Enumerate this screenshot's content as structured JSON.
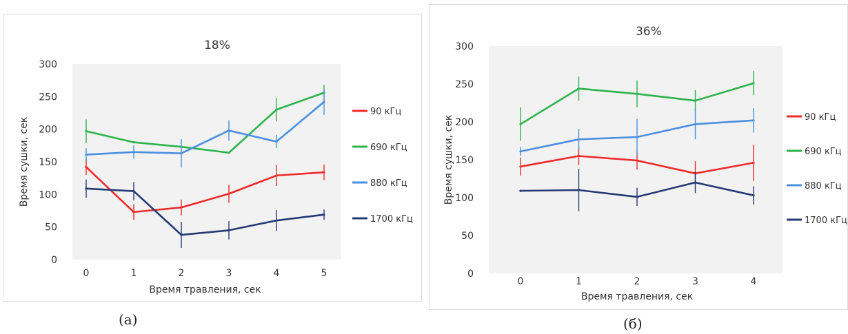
{
  "colors": {
    "90": "#ee2a2a",
    "690": "#2cb34a",
    "880": "#4a8fe0",
    "1700": "#243a73",
    "plot_bg": "#f2f2f2"
  },
  "captions": {
    "a": "(а)",
    "b": "(б)"
  },
  "chart_data": [
    {
      "type": "line",
      "title": "18%",
      "xlabel": "Время травления, сек",
      "ylabel": "Время сушки, сек",
      "x": [
        0,
        1,
        2,
        3,
        4,
        5
      ],
      "xlim": [
        0,
        5
      ],
      "ylim": [
        0,
        300
      ],
      "yticks": [
        0,
        50,
        100,
        150,
        200,
        250,
        300
      ],
      "grid": false,
      "legend": "right",
      "series": [
        {
          "name": "90 кГц",
          "color_key": "90",
          "values": [
            142,
            73,
            80,
            101,
            129,
            134
          ],
          "errors": [
            12,
            12,
            12,
            14,
            16,
            12
          ]
        },
        {
          "name": "690 кГц",
          "color_key": "690",
          "values": [
            197,
            180,
            173,
            164,
            230,
            256
          ],
          "errors": [
            18,
            0,
            0,
            0,
            18,
            12
          ]
        },
        {
          "name": "880 кГц",
          "color_key": "880",
          "values": [
            161,
            165,
            163,
            198,
            181,
            242
          ],
          "errors": [
            10,
            10,
            22,
            16,
            10,
            20
          ]
        },
        {
          "name": "1700 кГц",
          "color_key": "1700",
          "values": [
            109,
            105,
            38,
            45,
            60,
            69
          ],
          "errors": [
            14,
            14,
            20,
            14,
            16,
            8
          ]
        }
      ]
    },
    {
      "type": "line",
      "title": "36%",
      "xlabel": "Время травления, сек",
      "ylabel": "Время сушки, сек",
      "x": [
        0,
        1,
        2,
        3,
        4
      ],
      "xlim": [
        0,
        4
      ],
      "ylim": [
        0,
        300
      ],
      "yticks": [
        0,
        50,
        100,
        150,
        200,
        250,
        300
      ],
      "grid": false,
      "legend": "right",
      "series": [
        {
          "name": "90 кГц",
          "color_key": "90",
          "values": [
            141,
            155,
            149,
            132,
            146
          ],
          "errors": [
            12,
            12,
            12,
            16,
            24
          ]
        },
        {
          "name": "690 кГц",
          "color_key": "690",
          "values": [
            197,
            244,
            237,
            228,
            251
          ],
          "errors": [
            22,
            16,
            18,
            14,
            16
          ]
        },
        {
          "name": "880 кГц",
          "color_key": "880",
          "values": [
            161,
            177,
            180,
            197,
            202
          ],
          "errors": [
            6,
            14,
            24,
            20,
            16
          ]
        },
        {
          "name": "1700 кГц",
          "color_key": "1700",
          "values": [
            109,
            110,
            101,
            120,
            103
          ],
          "errors": [
            0,
            28,
            12,
            14,
            12
          ]
        }
      ]
    }
  ]
}
